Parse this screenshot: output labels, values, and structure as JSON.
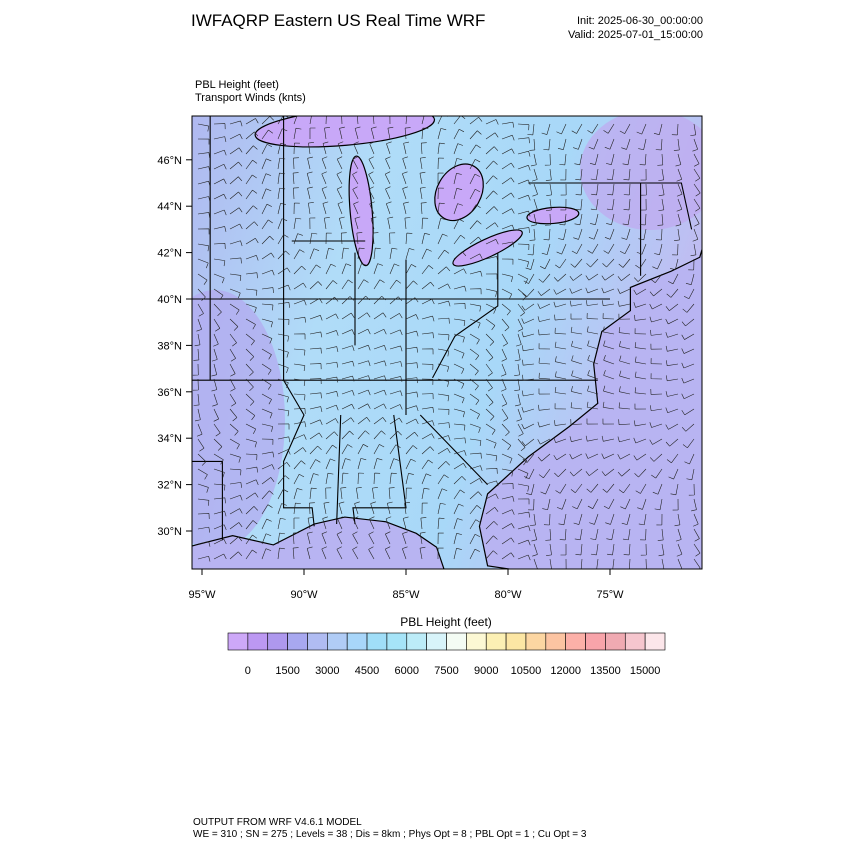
{
  "header": {
    "title": "IWFAQRP Eastern US Real Time WRF",
    "init": "Init: 2025-06-30_00:00:00",
    "valid": "Valid: 2025-07-01_15:00:00"
  },
  "fields": [
    "PBL Height   (feet)",
    "Transport Winds   (knts)"
  ],
  "map": {
    "lat_ticks": [
      {
        "value": 46,
        "label": "46°N"
      },
      {
        "value": 44,
        "label": "44°N"
      },
      {
        "value": 42,
        "label": "42°N"
      },
      {
        "value": 40,
        "label": "40°N"
      },
      {
        "value": 38,
        "label": "38°N"
      },
      {
        "value": 36,
        "label": "36°N"
      },
      {
        "value": 34,
        "label": "34°N"
      },
      {
        "value": 32,
        "label": "32°N"
      },
      {
        "value": 30,
        "label": "30°N"
      }
    ],
    "lon_ticks": [
      {
        "value": -95,
        "label": "95°W"
      },
      {
        "value": -90,
        "label": "90°W"
      },
      {
        "value": -85,
        "label": "85°W"
      },
      {
        "value": -80,
        "label": "80°W"
      },
      {
        "value": -75,
        "label": "75°W"
      }
    ]
  },
  "colorbar": {
    "title": "PBL Height  (feet)",
    "colors": [
      "#cda8f8",
      "#bc98f2",
      "#ae98ee",
      "#a8a8f0",
      "#b0bcf2",
      "#b0ccf6",
      "#a8d6fa",
      "#a0def8",
      "#a6e4f8",
      "#bcecf8",
      "#d8f4fa",
      "#f4fcf4",
      "#fcf8d4",
      "#fcf0b4",
      "#fce6a4",
      "#fcd6a2",
      "#fcc4a2",
      "#fcb0a8",
      "#f8a4aa",
      "#f0aab2",
      "#f6c6ce",
      "#fce6ea"
    ],
    "labels": [
      0,
      1500,
      3000,
      4500,
      6000,
      7500,
      9000,
      10500,
      12000,
      13500,
      15000
    ]
  },
  "footer": [
    "OUTPUT FROM WRF V4.6.1 MODEL",
    "WE = 310 ; SN = 275 ; Levels = 38 ; Dis = 8km ; Phys Opt = 8 ; PBL Opt = 1 ; Cu Opt = 3"
  ]
}
